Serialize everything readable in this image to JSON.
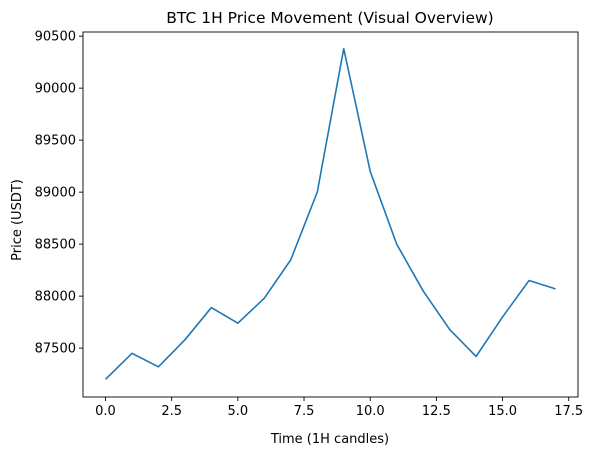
{
  "chart_data": {
    "type": "line",
    "title": "BTC 1H Price Movement (Visual Overview)",
    "xlabel": "Time (1H candles)",
    "ylabel": "Price (USDT)",
    "xlim": [
      -0.85,
      17.85
    ],
    "ylim": [
      87030,
      90540
    ],
    "xticks": [
      0.0,
      2.5,
      5.0,
      7.5,
      10.0,
      12.5,
      15.0,
      17.5
    ],
    "xtick_labels": [
      "0.0",
      "2.5",
      "5.0",
      "7.5",
      "10.0",
      "12.5",
      "15.0",
      "17.5"
    ],
    "yticks": [
      87500,
      88000,
      88500,
      89000,
      89500,
      90000,
      90500
    ],
    "ytick_labels": [
      "87500",
      "88000",
      "88500",
      "89000",
      "89500",
      "90000",
      "90500"
    ],
    "grid": false,
    "legend": "none",
    "series": [
      {
        "color": "#1f77b4",
        "x": [
          0,
          1,
          2,
          3,
          4,
          5,
          6,
          7,
          8,
          9,
          10,
          11,
          12,
          13,
          14,
          15,
          16,
          17
        ],
        "y": [
          87200,
          87450,
          87320,
          87580,
          87890,
          87740,
          87980,
          88350,
          89000,
          90380,
          89200,
          88500,
          88050,
          87680,
          87420,
          87800,
          88150,
          88070
        ]
      }
    ]
  }
}
